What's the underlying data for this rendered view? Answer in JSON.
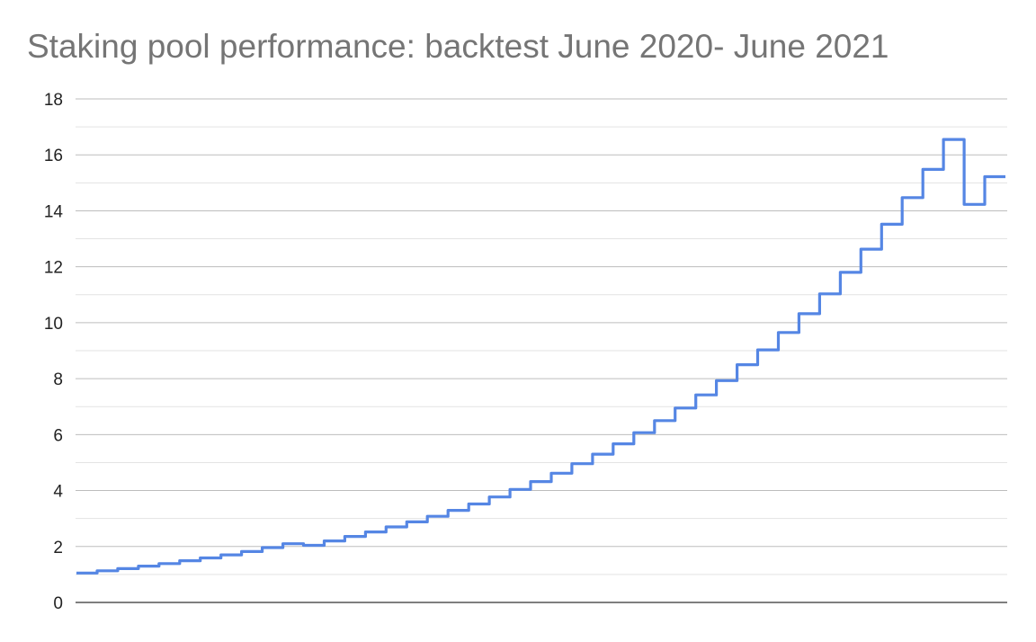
{
  "chart_data": {
    "type": "line",
    "title": "Staking pool performance: backtest June 2020- June 2021",
    "xlabel": "",
    "ylabel": "",
    "ylim": [
      0,
      18
    ],
    "yticks": [
      "0",
      "2",
      "4",
      "6",
      "8",
      "10",
      "12",
      "14",
      "16",
      "18"
    ],
    "minor_gridlines": true,
    "legend": "none",
    "line_color": "#5586e4",
    "series": [
      {
        "values": [
          1.05,
          1.13,
          1.21,
          1.3,
          1.39,
          1.49,
          1.59,
          1.7,
          1.82,
          1.96,
          2.1,
          2.04,
          2.2,
          2.36,
          2.52,
          2.7,
          2.88,
          3.08,
          3.29,
          3.52,
          3.77,
          4.04,
          4.32,
          4.62,
          4.96,
          5.3,
          5.67,
          6.07,
          6.5,
          6.95,
          7.42,
          7.93,
          8.5,
          9.03,
          9.65,
          10.32,
          11.03,
          11.8,
          12.63,
          13.52,
          14.47,
          15.48,
          16.55,
          14.23,
          15.22
        ]
      }
    ]
  }
}
